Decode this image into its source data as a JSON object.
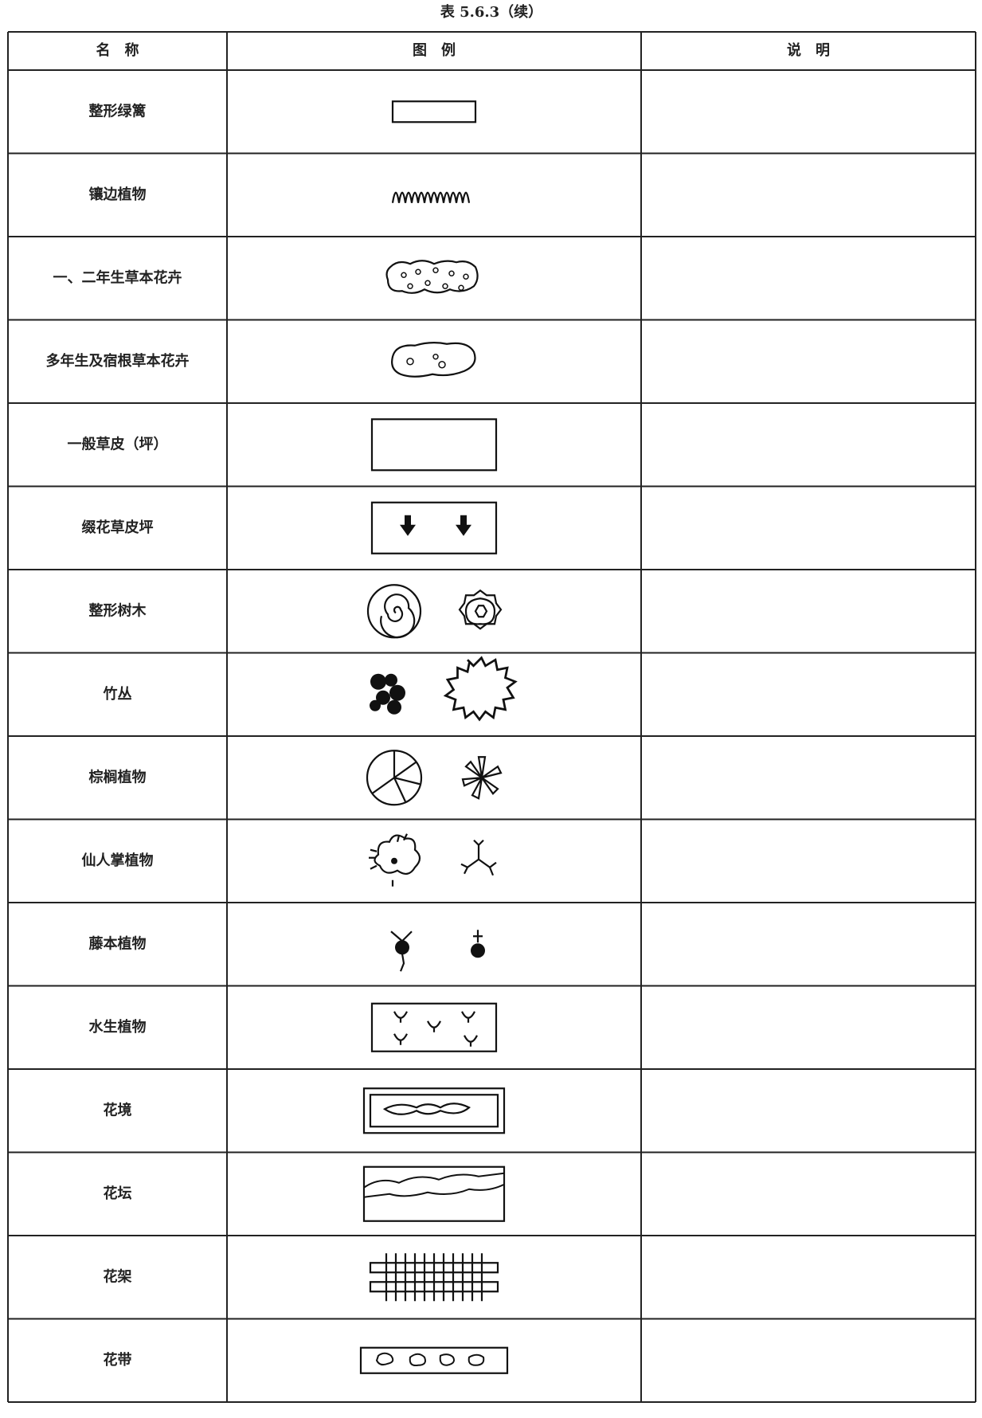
{
  "title": "表 5.6.3（续）",
  "table": {
    "header": [
      "名　称",
      "图　例",
      "说　明"
    ],
    "rows": [
      [
        "整形绿篱"
      ],
      [
        "镶边植物"
      ],
      [
        "一、二年生草本花卉"
      ],
      [
        "多年生及宿根草本花卉"
      ],
      [
        "一般草皮（坪）"
      ],
      [
        "缀花草皮坪"
      ],
      [
        "整形树木"
      ],
      [
        "竹丛"
      ],
      [
        "棕榈植物"
      ],
      [
        "仙人掌植物"
      ],
      [
        "藤本植物"
      ],
      [
        "水生植物"
      ],
      [
        "花境"
      ],
      [
        "花坛"
      ],
      [
        "花架"
      ],
      [
        "花带"
      ]
    ]
  }
}
